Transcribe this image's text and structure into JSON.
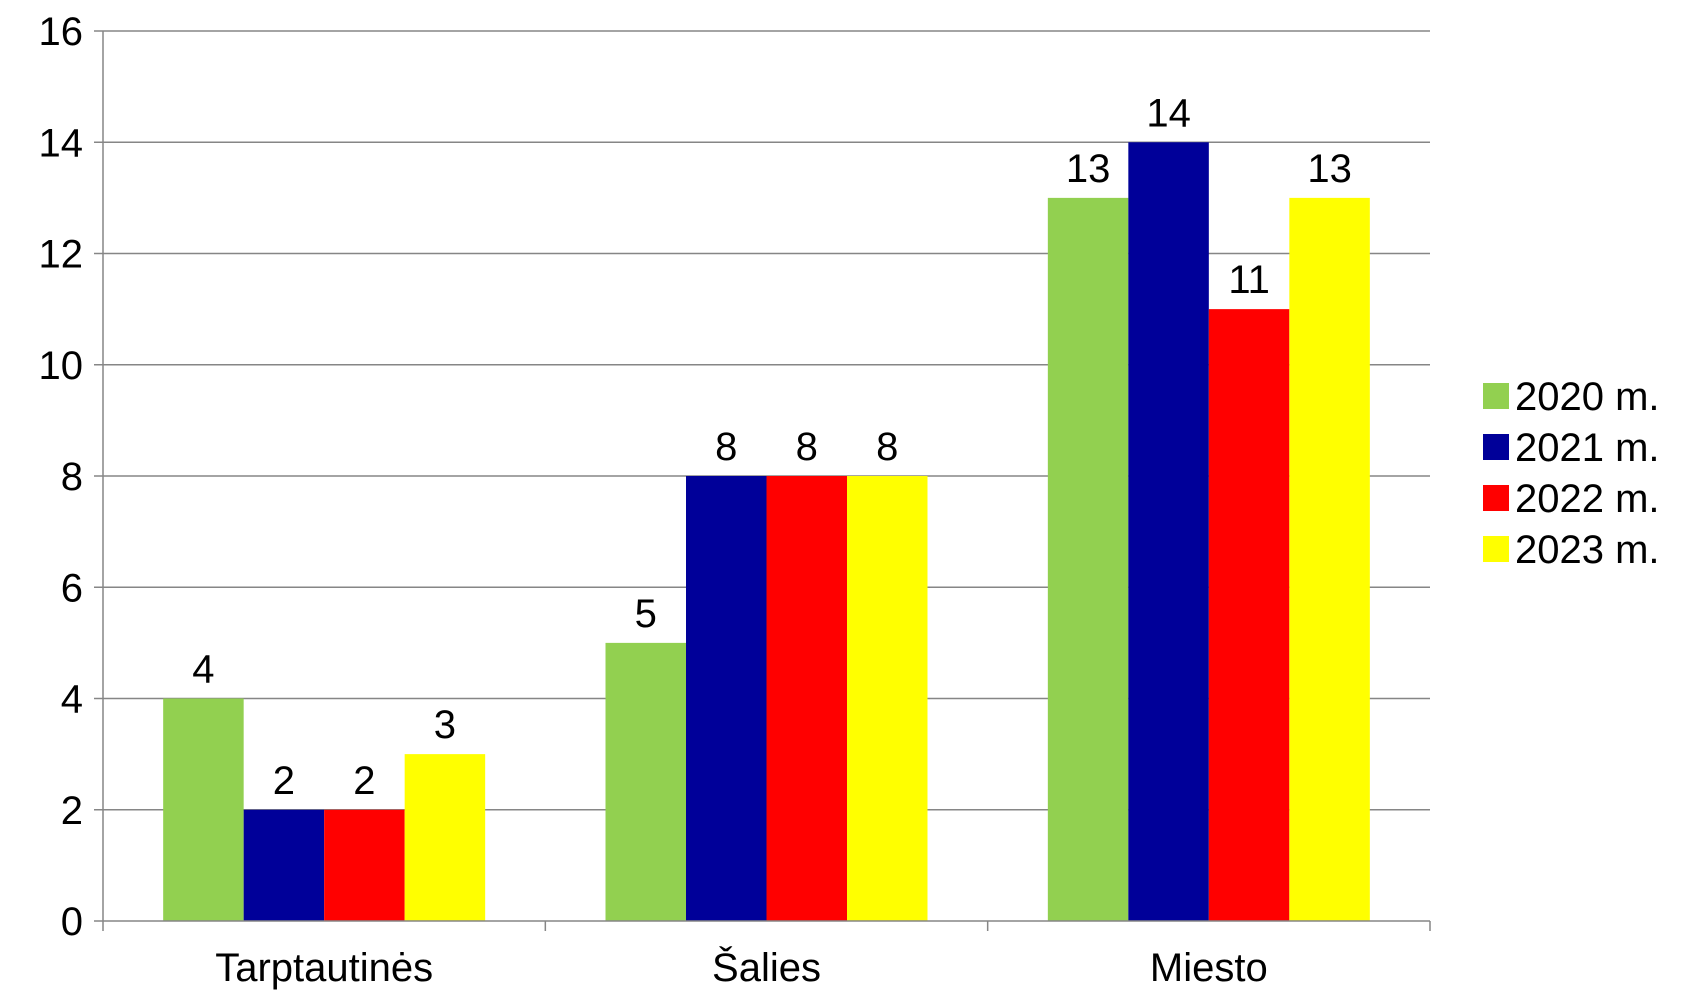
{
  "chart_data": {
    "type": "bar",
    "categories": [
      "Tarptautinės",
      "Šalies",
      "Miesto"
    ],
    "series": [
      {
        "name": "2020 m.",
        "values": [
          4,
          5,
          13
        ],
        "color": "#92d050"
      },
      {
        "name": "2021 m.",
        "values": [
          2,
          8,
          14
        ],
        "color": "#000099"
      },
      {
        "name": "2022 m.",
        "values": [
          2,
          8,
          11
        ],
        "color": "#ff0000"
      },
      {
        "name": "2023 m.",
        "values": [
          3,
          8,
          13
        ],
        "color": "#ffff00"
      }
    ],
    "ylim": [
      0,
      16
    ],
    "yticks": [
      0,
      2,
      4,
      6,
      8,
      10,
      12,
      14,
      16
    ],
    "grid": true,
    "legend": "right",
    "data_labels": true,
    "title": "",
    "xlabel": "",
    "ylabel": ""
  }
}
